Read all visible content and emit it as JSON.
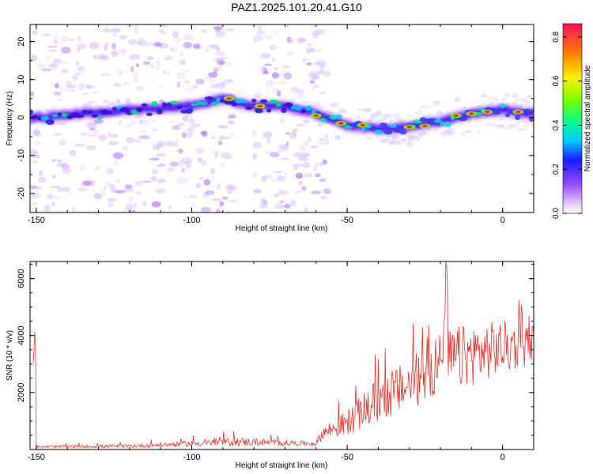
{
  "title": "PAZ1.2025.101.20.41.G10",
  "chart_data": [
    {
      "type": "heatmap",
      "xlabel": "Height of straight line (km)",
      "ylabel": "Frequency (Hz)",
      "xlim": [
        -152,
        10
      ],
      "ylim": [
        -25,
        24.5
      ],
      "xticks": [
        -150,
        -100,
        -50,
        0
      ],
      "yticks": [
        -20,
        -10,
        0,
        10,
        20
      ],
      "ridge": [
        {
          "x": -150,
          "y": 0
        },
        {
          "x": -120,
          "y": 2
        },
        {
          "x": -100,
          "y": 3
        },
        {
          "x": -90,
          "y": 5
        },
        {
          "x": -80,
          "y": 3
        },
        {
          "x": -70,
          "y": 3
        },
        {
          "x": -60,
          "y": 1
        },
        {
          "x": -50,
          "y": -2
        },
        {
          "x": -40,
          "y": -3
        },
        {
          "x": -30,
          "y": -2.5
        },
        {
          "x": -20,
          "y": -1
        },
        {
          "x": -10,
          "y": 1
        },
        {
          "x": 0,
          "y": 2
        },
        {
          "x": 10,
          "y": 1
        }
      ],
      "colorbar": {
        "label": "Normalized spectral amplitude",
        "range": [
          0,
          0.86
        ],
        "ticks": [
          0.0,
          0.2,
          0.4,
          0.6,
          0.8
        ]
      }
    },
    {
      "type": "line",
      "xlabel": "Height of straight line (km)",
      "ylabel": "SNR (10 * v/v)",
      "xlim": [
        -152,
        10
      ],
      "ylim": [
        0,
        6600
      ],
      "xticks": [
        -150,
        -100,
        -50,
        0
      ],
      "yticks": [
        2000,
        4000,
        6000
      ],
      "color": "#e8322a",
      "envelope": [
        {
          "x": -150,
          "base": 80,
          "amp": 80
        },
        {
          "x": -120,
          "base": 100,
          "amp": 120
        },
        {
          "x": -100,
          "base": 180,
          "amp": 200
        },
        {
          "x": -85,
          "base": 230,
          "amp": 300
        },
        {
          "x": -60,
          "base": 180,
          "amp": 150
        },
        {
          "x": -58,
          "base": 500,
          "amp": 500
        },
        {
          "x": -50,
          "base": 800,
          "amp": 900
        },
        {
          "x": -40,
          "base": 1500,
          "amp": 1600
        },
        {
          "x": -30,
          "base": 2000,
          "amp": 1800
        },
        {
          "x": -20,
          "base": 2700,
          "amp": 2300
        },
        {
          "x": -10,
          "base": 3000,
          "amp": 2200
        },
        {
          "x": 0,
          "base": 3300,
          "amp": 1900
        },
        {
          "x": 10,
          "base": 3500,
          "amp": 1500
        }
      ]
    }
  ]
}
